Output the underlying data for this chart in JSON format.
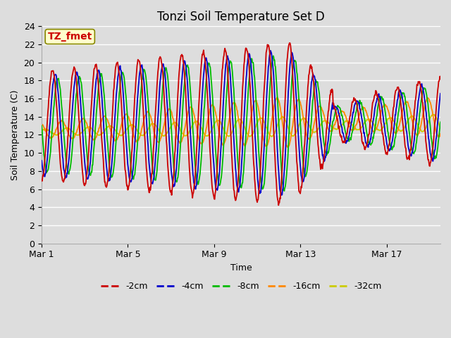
{
  "title": "Tonzi Soil Temperature Set D",
  "xlabel": "Time",
  "ylabel": "Soil Temperature (C)",
  "ylim": [
    0,
    24
  ],
  "xlim_days": [
    0,
    18.5
  ],
  "yticks": [
    0,
    2,
    4,
    6,
    8,
    10,
    12,
    14,
    16,
    18,
    20,
    22,
    24
  ],
  "xtick_positions": [
    0,
    4,
    8,
    12,
    16
  ],
  "xtick_labels": [
    "Mar 1",
    "Mar 5",
    "Mar 9",
    "Mar 13",
    "Mar 17"
  ],
  "colors": {
    "-2cm": "#cc0000",
    "-4cm": "#0000cc",
    "-8cm": "#00bb00",
    "-16cm": "#ff8800",
    "-32cm": "#cccc00"
  },
  "legend_label_order": [
    "-2cm",
    "-4cm",
    "-8cm",
    "-16cm",
    "-32cm"
  ],
  "annotation_text": "TZ_fmet",
  "annotation_color": "#cc0000",
  "annotation_bg": "#ffffcc",
  "annotation_border": "#888800",
  "background_color": "#dddddd",
  "title_fontsize": 12,
  "axis_fontsize": 9,
  "tick_fontsize": 9,
  "legend_fontsize": 9,
  "line_width": 1.3
}
